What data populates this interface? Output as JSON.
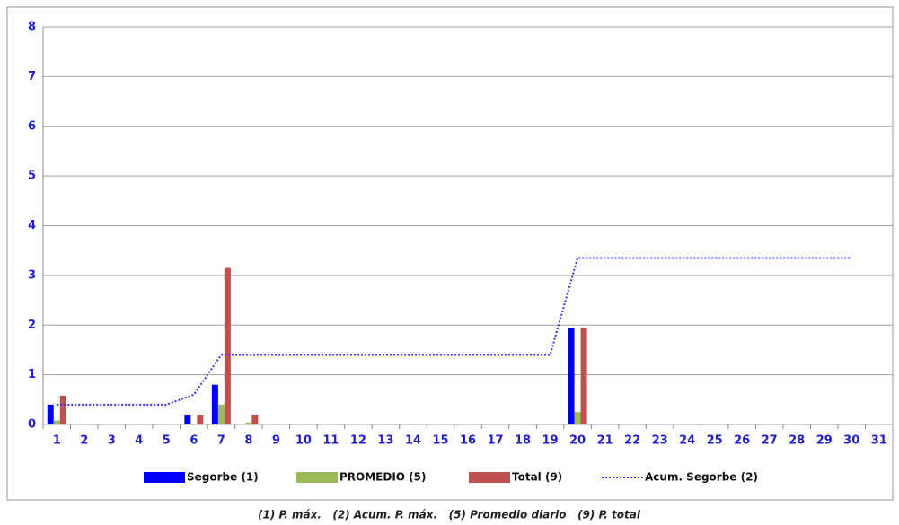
{
  "chart_data": {
    "type": "bar",
    "categories": [
      "1",
      "2",
      "3",
      "4",
      "5",
      "6",
      "7",
      "8",
      "9",
      "10",
      "11",
      "12",
      "13",
      "14",
      "15",
      "16",
      "17",
      "18",
      "19",
      "20",
      "21",
      "22",
      "23",
      "24",
      "25",
      "26",
      "27",
      "28",
      "29",
      "30",
      "31"
    ],
    "series": [
      {
        "name": "Segorbe (1)",
        "color": "#0000ff",
        "values": [
          0.4,
          0,
          0,
          0,
          0,
          0.2,
          0.8,
          0,
          0,
          0,
          0,
          0,
          0,
          0,
          0,
          0,
          0,
          0,
          0,
          1.95,
          0,
          0,
          0,
          0,
          0,
          0,
          0,
          0,
          0,
          0,
          0
        ]
      },
      {
        "name": "PROMEDIO (5)",
        "color": "#9bbb59",
        "values": [
          0.08,
          0,
          0,
          0,
          0,
          0,
          0.4,
          0.04,
          0,
          0,
          0,
          0,
          0,
          0,
          0,
          0,
          0,
          0,
          0,
          0.25,
          0,
          0,
          0,
          0,
          0,
          0,
          0,
          0,
          0,
          0,
          0
        ]
      },
      {
        "name": "Total (9)",
        "color": "#c0504d",
        "values": [
          0.58,
          0,
          0,
          0,
          0,
          0.2,
          3.15,
          0.2,
          0,
          0,
          0,
          0,
          0,
          0,
          0,
          0,
          0,
          0,
          0,
          1.95,
          0,
          0,
          0,
          0,
          0,
          0,
          0,
          0,
          0,
          0,
          0
        ]
      },
      {
        "name": "Acum. Segorbe (2)",
        "color": "#3333ff",
        "type": "line",
        "values": [
          0.4,
          0.4,
          0.4,
          0.4,
          0.4,
          0.6,
          1.4,
          1.4,
          1.4,
          1.4,
          1.4,
          1.4,
          1.4,
          1.4,
          1.4,
          1.4,
          1.4,
          1.4,
          1.4,
          3.35,
          3.35,
          3.35,
          3.35,
          3.35,
          3.35,
          3.35,
          3.35,
          3.35,
          3.35,
          3.35,
          null
        ]
      }
    ],
    "ylim": [
      0,
      8
    ],
    "yticks": [
      0,
      1,
      2,
      3,
      4,
      5,
      6,
      7,
      8
    ],
    "grid": true,
    "note": "(1) P. máx.   (2) Acum. P. máx.   (5) Promedio diario   (9) P. total"
  }
}
